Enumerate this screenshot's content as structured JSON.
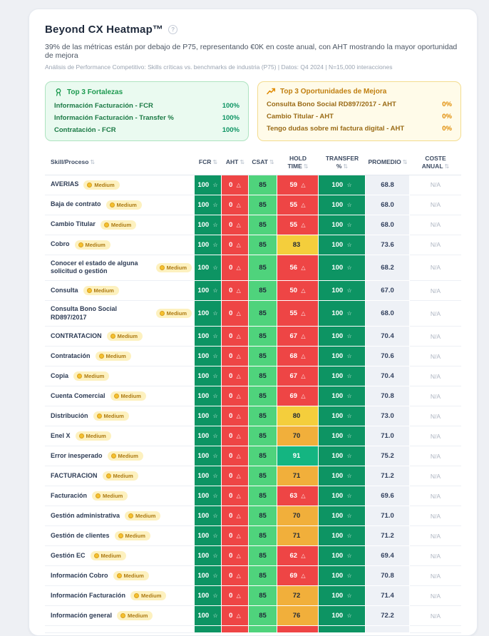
{
  "header": {
    "title": "Beyond CX Heatmap™",
    "subtitle": "39% de las métricas están por debajo de P75, representando €0K en coste anual, con AHT mostrando la mayor oportunidad de mejora",
    "caption": "Análisis de Performance Competitivo: Skills críticas vs. benchmarks de industria (P75) | Datos: Q4 2024 | N=15,000 interacciones"
  },
  "icons": {
    "help": "?",
    "sort": "⇅",
    "star": "☆",
    "warn": "△",
    "medal": "medal-icon",
    "trend": "trending-up-icon",
    "coin": "coin-icon"
  },
  "palette": {
    "dark_green": "#0d9463",
    "light_green": "#4fd37c",
    "emerald": "#14b581",
    "red": "#ee4545",
    "yellow": "#f4ce3c",
    "amber": "#f1af3b",
    "promedio_bg": "#eef1f6",
    "badge_bg": "#fdf1bf",
    "badge_text": "#ad7a12"
  },
  "strengths": {
    "title": "Top 3 Fortalezas",
    "items": [
      {
        "label": "Información Facturación - FCR",
        "value": "100%"
      },
      {
        "label": "Información Facturación - Transfer %",
        "value": "100%"
      },
      {
        "label": "Contratación - FCR",
        "value": "100%"
      }
    ]
  },
  "opportunities": {
    "title": "Top 3 Oportunidades de Mejora",
    "items": [
      {
        "label": "Consulta Bono Social RD897/2017 - AHT",
        "value": "0%"
      },
      {
        "label": "Cambio Titular - AHT",
        "value": "0%"
      },
      {
        "label": "Tengo dudas sobre mi factura digital - AHT",
        "value": "0%"
      }
    ]
  },
  "table": {
    "columns": [
      {
        "label": "Skill/Proceso"
      },
      {
        "label": "FCR"
      },
      {
        "label": "AHT"
      },
      {
        "label": "CSAT"
      },
      {
        "label": "HOLD TIME"
      },
      {
        "label": "TRANSFER %"
      },
      {
        "label": "PROMEDIO"
      },
      {
        "label": "COSTE ANUAL"
      }
    ],
    "badge_label": "Medium",
    "rows": [
      {
        "skill": "AVERIAS",
        "fcr": "100",
        "aht": "0",
        "csat": "85",
        "hold": "59",
        "hold_color": "red",
        "hold_warn": true,
        "transfer": "100",
        "promedio": "68.8",
        "coste": "N/A"
      },
      {
        "skill": "Baja de contrato",
        "fcr": "100",
        "aht": "0",
        "csat": "85",
        "hold": "55",
        "hold_color": "red",
        "hold_warn": true,
        "transfer": "100",
        "promedio": "68.0",
        "coste": "N/A"
      },
      {
        "skill": "Cambio Titular",
        "fcr": "100",
        "aht": "0",
        "csat": "85",
        "hold": "55",
        "hold_color": "red",
        "hold_warn": true,
        "transfer": "100",
        "promedio": "68.0",
        "coste": "N/A"
      },
      {
        "skill": "Cobro",
        "fcr": "100",
        "aht": "0",
        "csat": "85",
        "hold": "83",
        "hold_color": "yellow",
        "hold_warn": false,
        "transfer": "100",
        "promedio": "73.6",
        "coste": "N/A"
      },
      {
        "skill": "Conocer el estado de alguna solicitud o gestión",
        "fcr": "100",
        "aht": "0",
        "csat": "85",
        "hold": "56",
        "hold_color": "red",
        "hold_warn": true,
        "transfer": "100",
        "promedio": "68.2",
        "coste": "N/A"
      },
      {
        "skill": "Consulta",
        "fcr": "100",
        "aht": "0",
        "csat": "85",
        "hold": "50",
        "hold_color": "red",
        "hold_warn": true,
        "transfer": "100",
        "promedio": "67.0",
        "coste": "N/A"
      },
      {
        "skill": "Consulta Bono Social RD897/2017",
        "fcr": "100",
        "aht": "0",
        "csat": "85",
        "hold": "55",
        "hold_color": "red",
        "hold_warn": true,
        "transfer": "100",
        "promedio": "68.0",
        "coste": "N/A"
      },
      {
        "skill": "CONTRATACION",
        "fcr": "100",
        "aht": "0",
        "csat": "85",
        "hold": "67",
        "hold_color": "red",
        "hold_warn": true,
        "transfer": "100",
        "promedio": "70.4",
        "coste": "N/A"
      },
      {
        "skill": "Contratación",
        "fcr": "100",
        "aht": "0",
        "csat": "85",
        "hold": "68",
        "hold_color": "red",
        "hold_warn": true,
        "transfer": "100",
        "promedio": "70.6",
        "coste": "N/A"
      },
      {
        "skill": "Copia",
        "fcr": "100",
        "aht": "0",
        "csat": "85",
        "hold": "67",
        "hold_color": "red",
        "hold_warn": true,
        "transfer": "100",
        "promedio": "70.4",
        "coste": "N/A"
      },
      {
        "skill": "Cuenta Comercial",
        "fcr": "100",
        "aht": "0",
        "csat": "85",
        "hold": "69",
        "hold_color": "red",
        "hold_warn": true,
        "transfer": "100",
        "promedio": "70.8",
        "coste": "N/A"
      },
      {
        "skill": "Distribución",
        "fcr": "100",
        "aht": "0",
        "csat": "85",
        "hold": "80",
        "hold_color": "yellow",
        "hold_warn": false,
        "transfer": "100",
        "promedio": "73.0",
        "coste": "N/A"
      },
      {
        "skill": "Enel X",
        "fcr": "100",
        "aht": "0",
        "csat": "85",
        "hold": "70",
        "hold_color": "amber",
        "hold_warn": false,
        "transfer": "100",
        "promedio": "71.0",
        "coste": "N/A"
      },
      {
        "skill": "Error inesperado",
        "fcr": "100",
        "aht": "0",
        "csat": "85",
        "hold": "91",
        "hold_color": "emerald",
        "hold_warn": false,
        "transfer": "100",
        "promedio": "75.2",
        "coste": "N/A"
      },
      {
        "skill": "FACTURACION",
        "fcr": "100",
        "aht": "0",
        "csat": "85",
        "hold": "71",
        "hold_color": "amber",
        "hold_warn": false,
        "transfer": "100",
        "promedio": "71.2",
        "coste": "N/A"
      },
      {
        "skill": "Facturación",
        "fcr": "100",
        "aht": "0",
        "csat": "85",
        "hold": "63",
        "hold_color": "red",
        "hold_warn": true,
        "transfer": "100",
        "promedio": "69.6",
        "coste": "N/A"
      },
      {
        "skill": "Gestión administrativa",
        "fcr": "100",
        "aht": "0",
        "csat": "85",
        "hold": "70",
        "hold_color": "amber",
        "hold_warn": false,
        "transfer": "100",
        "promedio": "71.0",
        "coste": "N/A"
      },
      {
        "skill": "Gestión de clientes",
        "fcr": "100",
        "aht": "0",
        "csat": "85",
        "hold": "71",
        "hold_color": "amber",
        "hold_warn": false,
        "transfer": "100",
        "promedio": "71.2",
        "coste": "N/A"
      },
      {
        "skill": "Gestión EC",
        "fcr": "100",
        "aht": "0",
        "csat": "85",
        "hold": "62",
        "hold_color": "red",
        "hold_warn": true,
        "transfer": "100",
        "promedio": "69.4",
        "coste": "N/A"
      },
      {
        "skill": "Información Cobro",
        "fcr": "100",
        "aht": "0",
        "csat": "85",
        "hold": "69",
        "hold_color": "red",
        "hold_warn": true,
        "transfer": "100",
        "promedio": "70.8",
        "coste": "N/A"
      },
      {
        "skill": "Información Facturación",
        "fcr": "100",
        "aht": "0",
        "csat": "85",
        "hold": "72",
        "hold_color": "amber",
        "hold_warn": false,
        "transfer": "100",
        "promedio": "71.4",
        "coste": "N/A"
      },
      {
        "skill": "Información general",
        "fcr": "100",
        "aht": "0",
        "csat": "85",
        "hold": "76",
        "hold_color": "amber",
        "hold_warn": false,
        "transfer": "100",
        "promedio": "72.2",
        "coste": "N/A"
      }
    ],
    "partial_row": {
      "colors": [
        "dark_green",
        "red",
        "light_green",
        "red",
        "dark_green"
      ]
    }
  },
  "chart_data": {
    "type": "heatmap",
    "title": "Beyond CX Heatmap™",
    "columns": [
      "FCR",
      "AHT",
      "CSAT",
      "HOLD TIME",
      "TRANSFER %",
      "PROMEDIO",
      "COSTE ANUAL"
    ],
    "rows": [
      [
        "AVERIAS",
        100,
        0,
        85,
        59,
        100,
        68.8,
        "N/A"
      ],
      [
        "Baja de contrato",
        100,
        0,
        85,
        55,
        100,
        68.0,
        "N/A"
      ],
      [
        "Cambio Titular",
        100,
        0,
        85,
        55,
        100,
        68.0,
        "N/A"
      ],
      [
        "Cobro",
        100,
        0,
        85,
        83,
        100,
        73.6,
        "N/A"
      ],
      [
        "Conocer el estado de alguna solicitud o gestión",
        100,
        0,
        85,
        56,
        100,
        68.2,
        "N/A"
      ],
      [
        "Consulta",
        100,
        0,
        85,
        50,
        100,
        67.0,
        "N/A"
      ],
      [
        "Consulta Bono Social RD897/2017",
        100,
        0,
        85,
        55,
        100,
        68.0,
        "N/A"
      ],
      [
        "CONTRATACION",
        100,
        0,
        85,
        67,
        100,
        70.4,
        "N/A"
      ],
      [
        "Contratación",
        100,
        0,
        85,
        68,
        100,
        70.6,
        "N/A"
      ],
      [
        "Copia",
        100,
        0,
        85,
        67,
        100,
        70.4,
        "N/A"
      ],
      [
        "Cuenta Comercial",
        100,
        0,
        85,
        69,
        100,
        70.8,
        "N/A"
      ],
      [
        "Distribución",
        100,
        0,
        85,
        80,
        100,
        73.0,
        "N/A"
      ],
      [
        "Enel X",
        100,
        0,
        85,
        70,
        100,
        71.0,
        "N/A"
      ],
      [
        "Error inesperado",
        100,
        0,
        85,
        91,
        100,
        75.2,
        "N/A"
      ],
      [
        "FACTURACION",
        100,
        0,
        85,
        71,
        100,
        71.2,
        "N/A"
      ],
      [
        "Facturación",
        100,
        0,
        85,
        63,
        100,
        69.6,
        "N/A"
      ],
      [
        "Gestión administrativa",
        100,
        0,
        85,
        70,
        100,
        71.0,
        "N/A"
      ],
      [
        "Gestión de clientes",
        100,
        0,
        85,
        71,
        100,
        71.2,
        "N/A"
      ],
      [
        "Gestión EC",
        100,
        0,
        85,
        62,
        100,
        69.4,
        "N/A"
      ],
      [
        "Información Cobro",
        100,
        0,
        85,
        69,
        100,
        70.8,
        "N/A"
      ],
      [
        "Información Facturación",
        100,
        0,
        85,
        72,
        100,
        71.4,
        "N/A"
      ],
      [
        "Información general",
        100,
        0,
        85,
        76,
        100,
        72.2,
        "N/A"
      ]
    ]
  }
}
